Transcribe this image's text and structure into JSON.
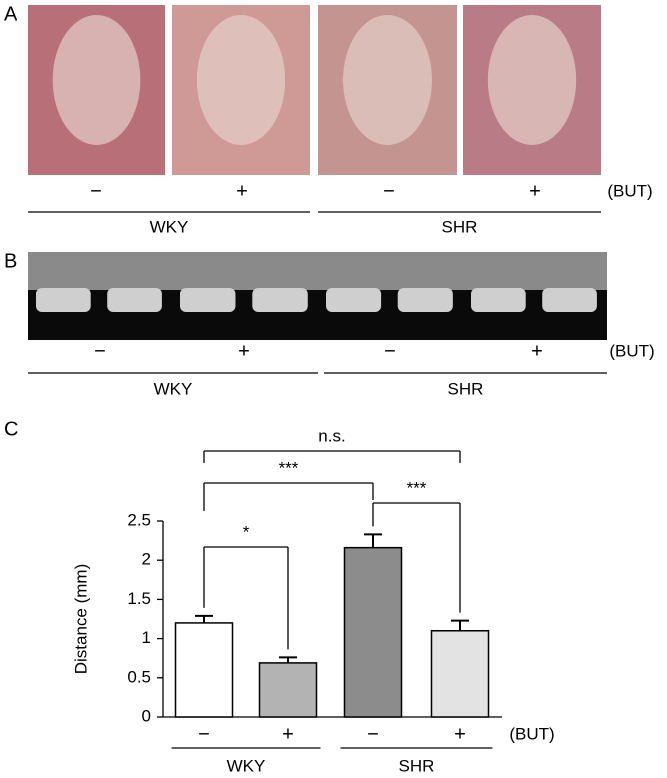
{
  "panels": [
    {
      "label": "A",
      "conditions": [
        "−",
        "+",
        "−",
        "+"
      ],
      "treatment": "(BUT)",
      "groups": [
        "WKY",
        "SHR"
      ]
    },
    {
      "label": "B",
      "conditions": [
        "−",
        "+",
        "−",
        "+"
      ],
      "treatment": "(BUT)",
      "groups": [
        "WKY",
        "SHR"
      ]
    }
  ],
  "chart_data": {
    "type": "bar",
    "label": "C",
    "ylabel": "Distance (mm)",
    "categories": [
      "−",
      "+",
      "−",
      "+"
    ],
    "groups": [
      "WKY",
      "SHR"
    ],
    "treatment_label": "(BUT)",
    "values": [
      1.2,
      0.69,
      2.16,
      1.1
    ],
    "errors": [
      0.09,
      0.07,
      0.17,
      0.13
    ],
    "colors": [
      "#ffffff",
      "#b3b3b3",
      "#8c8c8c",
      "#e3e3e3"
    ],
    "ylim": [
      0,
      2.5
    ],
    "yticks": [
      0,
      0.5,
      1,
      1.5,
      2,
      2.5
    ],
    "annotations": [
      {
        "text": "*",
        "from": 0,
        "to": 1
      },
      {
        "text": "***",
        "from": 0,
        "to": 2
      },
      {
        "text": "***",
        "from": 2,
        "to": 3
      },
      {
        "text": "n.s.",
        "from": 0,
        "to": 3
      }
    ]
  }
}
